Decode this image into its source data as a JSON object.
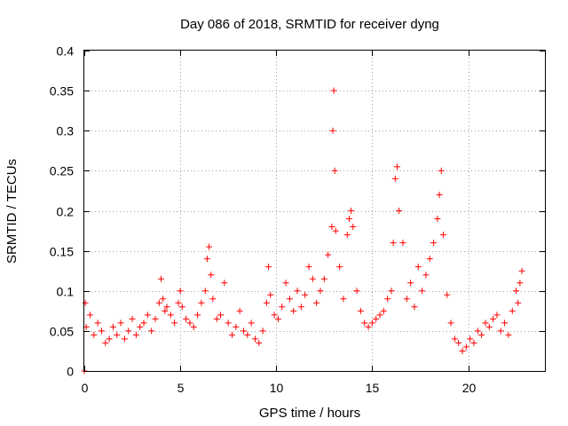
{
  "chart_data": {
    "type": "scatter",
    "title": "Day 086 of 2018, SRMTID for receiver dyng",
    "xlabel": "GPS time / hours",
    "ylabel": "SRMTID / TECUs",
    "xlim": [
      0,
      24
    ],
    "ylim": [
      0,
      0.4
    ],
    "xticks": [
      0,
      5,
      10,
      15,
      20
    ],
    "xtick_labels": [
      "0",
      "5",
      "10",
      "15",
      "20"
    ],
    "yticks": [
      0,
      0.05,
      0.1,
      0.15,
      0.2,
      0.25,
      0.3,
      0.35,
      0.4
    ],
    "ytick_labels": [
      "0",
      "0.05",
      "0.1",
      "0.15",
      "0.2",
      "0.25",
      "0.3",
      "0.35",
      "0.4"
    ],
    "grid": true,
    "marker": "+",
    "colors": {
      "points": "#ff0000",
      "grid": "#a0a0a0",
      "axes": "#000000"
    },
    "series": [
      {
        "name": "SRMTID",
        "x": [
          0.0,
          0.05,
          0.1,
          0.3,
          0.5,
          0.7,
          0.9,
          1.1,
          1.3,
          1.5,
          1.7,
          1.9,
          2.1,
          2.3,
          2.5,
          2.7,
          2.9,
          3.1,
          3.3,
          3.5,
          3.7,
          3.9,
          4.0,
          4.1,
          4.2,
          4.3,
          4.5,
          4.7,
          4.9,
          5.0,
          5.1,
          5.3,
          5.5,
          5.7,
          5.9,
          6.1,
          6.3,
          6.4,
          6.5,
          6.6,
          6.7,
          6.9,
          7.1,
          7.3,
          7.5,
          7.7,
          7.9,
          8.1,
          8.3,
          8.5,
          8.7,
          8.9,
          9.1,
          9.3,
          9.5,
          9.6,
          9.7,
          9.9,
          10.1,
          10.3,
          10.5,
          10.7,
          10.9,
          11.1,
          11.3,
          11.5,
          11.7,
          11.9,
          12.1,
          12.3,
          12.5,
          12.7,
          12.9,
          12.95,
          13.0,
          13.05,
          13.1,
          13.3,
          13.5,
          13.7,
          13.8,
          13.9,
          14.0,
          14.2,
          14.4,
          14.6,
          14.8,
          15.0,
          15.2,
          15.4,
          15.6,
          15.8,
          16.0,
          16.1,
          16.2,
          16.3,
          16.4,
          16.6,
          16.8,
          17.0,
          17.2,
          17.4,
          17.6,
          17.8,
          18.0,
          18.2,
          18.4,
          18.5,
          18.6,
          18.7,
          18.9,
          19.1,
          19.3,
          19.5,
          19.7,
          19.9,
          20.1,
          20.3,
          20.5,
          20.7,
          20.9,
          21.1,
          21.3,
          21.5,
          21.7,
          21.9,
          22.1,
          22.3,
          22.5,
          22.6,
          22.7,
          22.8
        ],
        "y": [
          0.0,
          0.085,
          0.055,
          0.07,
          0.045,
          0.06,
          0.05,
          0.035,
          0.04,
          0.055,
          0.045,
          0.06,
          0.04,
          0.05,
          0.065,
          0.045,
          0.055,
          0.06,
          0.07,
          0.05,
          0.065,
          0.085,
          0.115,
          0.09,
          0.075,
          0.08,
          0.07,
          0.06,
          0.085,
          0.1,
          0.08,
          0.065,
          0.06,
          0.055,
          0.07,
          0.085,
          0.1,
          0.14,
          0.155,
          0.12,
          0.09,
          0.065,
          0.07,
          0.11,
          0.06,
          0.045,
          0.055,
          0.075,
          0.05,
          0.045,
          0.06,
          0.04,
          0.035,
          0.05,
          0.085,
          0.13,
          0.095,
          0.07,
          0.065,
          0.08,
          0.11,
          0.09,
          0.075,
          0.1,
          0.08,
          0.095,
          0.13,
          0.115,
          0.085,
          0.1,
          0.115,
          0.145,
          0.18,
          0.3,
          0.35,
          0.25,
          0.175,
          0.13,
          0.09,
          0.17,
          0.19,
          0.2,
          0.18,
          0.1,
          0.075,
          0.06,
          0.055,
          0.06,
          0.065,
          0.07,
          0.075,
          0.09,
          0.1,
          0.16,
          0.24,
          0.255,
          0.2,
          0.16,
          0.09,
          0.11,
          0.08,
          0.13,
          0.1,
          0.12,
          0.14,
          0.16,
          0.19,
          0.22,
          0.25,
          0.17,
          0.095,
          0.06,
          0.04,
          0.035,
          0.025,
          0.03,
          0.04,
          0.035,
          0.05,
          0.045,
          0.06,
          0.055,
          0.065,
          0.07,
          0.05,
          0.06,
          0.045,
          0.075,
          0.1,
          0.085,
          0.11,
          0.125
        ]
      }
    ]
  }
}
